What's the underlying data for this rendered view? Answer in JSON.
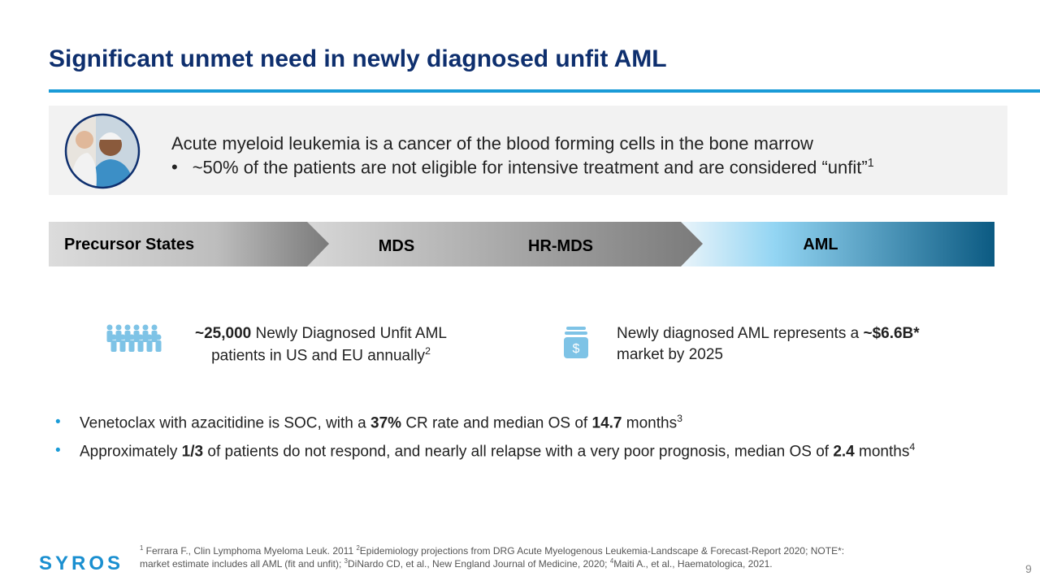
{
  "title": "Significant unmet need in newly diagnosed unfit AML",
  "intro": {
    "line": "Acute myeloid leukemia is a cancer of the blood forming cells in the bone marrow",
    "bullet": [
      {
        "text": "~50% of the patients are not eligible for intensive treatment and are considered “unfit”"
      },
      {
        "sup": "1"
      }
    ]
  },
  "progression": [
    "Precursor States",
    "MDS",
    "HR-MDS",
    "AML"
  ],
  "stats": [
    [
      {
        "bold": "~25,000"
      },
      {
        "text": " Newly Diagnosed Unfit AML patients in US and EU annually"
      },
      {
        "sup": "2"
      }
    ],
    [
      {
        "text": "Newly diagnosed AML represents a "
      },
      {
        "bold": "~$6.6B*"
      },
      {
        "text": " market by 2025"
      }
    ]
  ],
  "bullets": [
    [
      {
        "text": "Venetoclax with azacitidine is SOC, with a "
      },
      {
        "bold": "37%"
      },
      {
        "text": " CR rate and median OS of "
      },
      {
        "bold": "14.7"
      },
      {
        "text": " months"
      },
      {
        "sup": "3"
      }
    ],
    [
      {
        "text": "Approximately "
      },
      {
        "bold": "1/3"
      },
      {
        "text": " of patients do not respond, and nearly all relapse with a very poor prognosis, median OS of "
      },
      {
        "bold": "2.4"
      },
      {
        "text": " months"
      },
      {
        "sup": "4"
      }
    ]
  ],
  "footnote": [
    {
      "sup": "1"
    },
    {
      "text": " Ferrara F., Clin Lymphoma Myeloma Leuk. 2011 "
    },
    {
      "sup": "2"
    },
    {
      "text": "Epidemiology projections from DRG Acute Myelogenous Leukemia-Landscape & Forecast-Report 2020; NOTE*: market estimate includes all AML (fit and unfit); "
    },
    {
      "sup": "3"
    },
    {
      "text": "DiNardo CD, et al., New England Journal of Medicine, 2020; "
    },
    {
      "sup": "4"
    },
    {
      "text": "Maiti A., et al., Haematologica, 2021."
    }
  ],
  "logo": "SYROS",
  "page_number": "9"
}
